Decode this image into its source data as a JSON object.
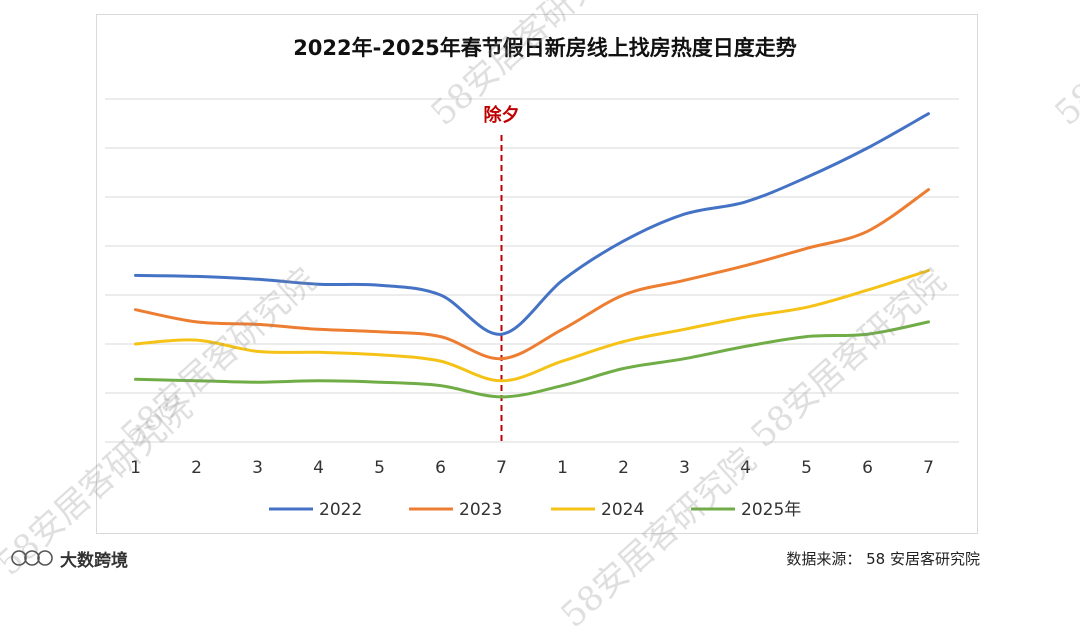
{
  "watermark": "58安居客研究院",
  "brand": {
    "name": "大数跨境",
    "icon": "mic-logo-icon"
  },
  "source": "数据来源：  58 安居客研究院",
  "chart_data": {
    "type": "line",
    "title": "2022年-2025年春节假日新房线上找房热度日度走势",
    "xlabel": "",
    "ylabel": "",
    "categories": [
      "1",
      "2",
      "3",
      "4",
      "5",
      "6",
      "7",
      "1",
      "2",
      "3",
      "4",
      "5",
      "6",
      "7"
    ],
    "ylim": [
      0,
      7
    ],
    "grid": true,
    "legend_position": "bottom",
    "annotation": {
      "label": "除夕",
      "at_index": 6,
      "color": "#c00000"
    },
    "series": [
      {
        "name": "2022",
        "color": "#4472c4",
        "values": [
          3.4,
          3.38,
          3.32,
          3.22,
          3.2,
          3.0,
          2.2,
          3.3,
          4.1,
          4.65,
          4.9,
          5.4,
          6.0,
          6.7
        ]
      },
      {
        "name": "2023",
        "color": "#ed7d31",
        "values": [
          2.7,
          2.45,
          2.4,
          2.3,
          2.25,
          2.15,
          1.7,
          2.3,
          3.0,
          3.3,
          3.6,
          3.95,
          4.3,
          5.15
        ]
      },
      {
        "name": "2024",
        "color": "#f5c218",
        "values": [
          2.0,
          2.08,
          1.85,
          1.83,
          1.78,
          1.65,
          1.25,
          1.65,
          2.05,
          2.3,
          2.55,
          2.75,
          3.1,
          3.5
        ]
      },
      {
        "name": "2025年",
        "color": "#70ad47",
        "values": [
          1.28,
          1.25,
          1.22,
          1.25,
          1.22,
          1.15,
          0.92,
          1.15,
          1.5,
          1.7,
          1.95,
          2.15,
          2.2,
          2.45
        ]
      }
    ]
  }
}
